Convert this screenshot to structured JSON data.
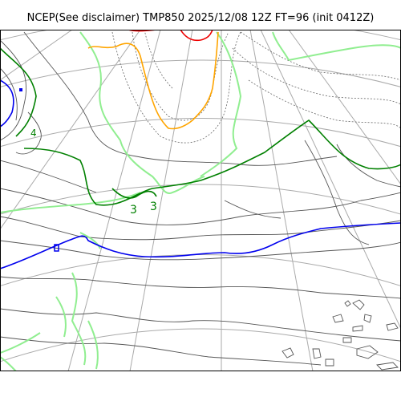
{
  "title": "NCEP(See disclaimer) TMP850 2025/12/08 12Z FT=96 (init 0412Z)",
  "contour_labels": [
    "4",
    "3",
    "3"
  ],
  "colors": {
    "coastline": "#000000",
    "graticule": "#aaaaaa",
    "isotherm_gray": "#555555",
    "isotherm_dotted": "#666666",
    "contour_lightgreen": "#90ee90",
    "contour_green": "#008000",
    "contour_blue": "#0000ee",
    "contour_orange": "#ffa500",
    "contour_red": "#ee0000"
  }
}
